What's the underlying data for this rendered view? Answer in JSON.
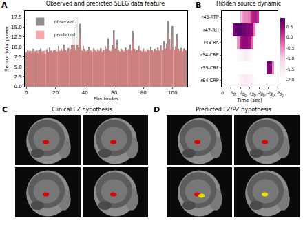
{
  "chart_data": [
    {
      "type": "bar",
      "title": "Observed and predicted SEEG data feature",
      "x_label": "Electrodes",
      "y_label": "Sensor total power",
      "x": [
        0,
        1,
        2,
        3,
        4,
        5,
        6,
        7,
        8,
        9,
        10,
        11,
        12,
        13,
        14,
        15,
        16,
        17,
        18,
        19,
        20,
        21,
        22,
        23,
        24,
        25,
        26,
        27,
        28,
        29,
        30,
        31,
        32,
        33,
        34,
        35,
        36,
        37,
        38,
        39,
        40,
        41,
        42,
        43,
        44,
        45,
        46,
        47,
        48,
        49,
        50,
        51,
        52,
        53,
        54,
        55,
        56,
        57,
        58,
        59,
        60,
        61,
        62,
        63,
        64,
        65,
        66,
        67,
        68,
        69,
        70,
        71,
        72,
        73,
        74,
        75,
        76,
        77,
        78,
        79,
        80,
        81,
        82,
        83,
        84,
        85,
        86,
        87,
        88,
        89,
        90,
        91,
        92,
        93,
        94,
        95,
        96,
        97,
        98,
        99,
        100,
        101,
        102,
        103,
        104,
        105,
        106,
        107,
        108,
        109
      ],
      "series": [
        {
          "name": "observed",
          "color": "#8c8c8c",
          "values": [
            8.5,
            9.2,
            8.8,
            9.0,
            8.3,
            9.5,
            8.9,
            9.1,
            8.4,
            9.3,
            9.6,
            8.7,
            9.0,
            8.2,
            9.4,
            8.6,
            9.8,
            9.1,
            8.5,
            9.0,
            9.3,
            8.8,
            10.2,
            8.9,
            9.5,
            9.0,
            10.8,
            9.2,
            8.6,
            9.7,
            9.4,
            10.5,
            13.5,
            15.0,
            9.2,
            17.5,
            9.8,
            15.8,
            9.0,
            10.2,
            9.5,
            8.9,
            9.3,
            10.0,
            9.1,
            8.7,
            9.6,
            9.2,
            8.8,
            9.4,
            9.0,
            9.7,
            8.6,
            9.3,
            10.1,
            9.5,
            12.2,
            9.1,
            8.9,
            10.5,
            14.2,
            9.6,
            11.8,
            9.3,
            8.8,
            9.5,
            9.1,
            8.7,
            9.8,
            9.2,
            9.4,
            10.6,
            9.0,
            14.0,
            9.5,
            8.9,
            9.3,
            10.2,
            9.1,
            8.8,
            9.6,
            9.0,
            8.7,
            9.4,
            9.2,
            10.0,
            9.3,
            8.6,
            9.5,
            9.1,
            9.8,
            9.0,
            10.4,
            9.2,
            11.5,
            9.6,
            10.8,
            16.5,
            12.0,
            9.4,
            15.2,
            9.3,
            10.1,
            13.2,
            9.5,
            9.0,
            9.7,
            8.8,
            9.6,
            9.2
          ]
        },
        {
          "name": "predicted",
          "color": "#f07a7a",
          "values": [
            8.8,
            9.0,
            9.1,
            8.7,
            8.9,
            9.2,
            9.0,
            8.8,
            9.1,
            9.0,
            9.2,
            9.0,
            8.9,
            9.1,
            9.0,
            8.8,
            9.3,
            9.0,
            8.9,
            9.2,
            9.1,
            9.0,
            9.6,
            9.1,
            9.3,
            9.0,
            10.0,
            9.2,
            9.0,
            9.4,
            9.3,
            9.8,
            11.0,
            12.0,
            9.4,
            13.5,
            9.6,
            12.5,
            9.2,
            9.8,
            9.3,
            9.1,
            9.2,
            9.6,
            9.1,
            9.0,
            9.3,
            9.2,
            9.0,
            9.2,
            9.1,
            9.4,
            9.0,
            9.2,
            9.7,
            9.3,
            10.5,
            9.1,
            9.0,
            9.8,
            12.0,
            9.4,
            10.5,
            9.2,
            9.0,
            9.3,
            9.1,
            9.0,
            9.5,
            9.2,
            9.3,
            9.9,
            9.1,
            11.5,
            9.3,
            9.0,
            9.2,
            9.8,
            9.1,
            9.0,
            9.3,
            9.1,
            9.0,
            9.2,
            9.1,
            9.6,
            9.2,
            9.0,
            9.3,
            9.1,
            9.5,
            9.1,
            9.8,
            9.2,
            10.3,
            9.4,
            10.0,
            13.8,
            10.5,
            9.3,
            12.8,
            9.2,
            9.7,
            11.5,
            9.3,
            9.1,
            9.4,
            9.0,
            9.3,
            9.2
          ]
        }
      ],
      "xlim": [
        -1,
        110
      ],
      "xticks": [
        0,
        20,
        40,
        60,
        80,
        100
      ],
      "ylim": [
        0,
        19
      ],
      "yticks": [
        {
          "value": 0,
          "label": "0.0"
        },
        2.5,
        {
          "value": 5,
          "label": "5.0"
        },
        7.5,
        {
          "value": 10,
          "label": "10.0"
        },
        12.5,
        {
          "value": 15,
          "label": "15.0"
        },
        17.5
      ],
      "legend": "upper left",
      "grid": false
    },
    {
      "type": "heatmap",
      "title": "Hidden source dynamic",
      "x_label": "Time (sec)",
      "categories": [
        "r43-RTP",
        "r47-RH",
        "r48-RA",
        "r54-CRE",
        "r55-CRF",
        "r64-CRP"
      ],
      "x": [
        5,
        15,
        25,
        35,
        45,
        55,
        65,
        75,
        85,
        95,
        105,
        115,
        125,
        135,
        145,
        155,
        165,
        175,
        185,
        195,
        205,
        215,
        225,
        235,
        245,
        255,
        265,
        275,
        285,
        295
      ],
      "z": [
        [
          -2,
          -2,
          -2,
          -2,
          -2,
          -2,
          -2,
          -2,
          -2,
          -2,
          -0.8,
          -0.6,
          -0.5,
          -0.5,
          -0.4,
          -0.3,
          0.2,
          0.3,
          0.3,
          0.1,
          -1.9,
          -2,
          -2,
          -2,
          -2,
          -2,
          -2,
          -2,
          -2,
          -2
        ],
        [
          -2,
          -2,
          -2,
          -2,
          -2,
          -2,
          0.6,
          0.8,
          0.8,
          0.8,
          0.8,
          0.7,
          0.7,
          0.6,
          0.6,
          0.5,
          0.5,
          -0.4,
          -1.8,
          -2,
          -2,
          -2,
          -2,
          -2,
          -2,
          -2,
          -2,
          -2,
          -2,
          -2
        ],
        [
          -2,
          -2,
          -2,
          -2,
          -2,
          -2,
          -2,
          -2,
          -0.6,
          -0.5,
          0.4,
          0.5,
          0.5,
          0.5,
          0.4,
          0.4,
          -0.2,
          -1.8,
          -2,
          -2,
          -2,
          -2,
          -2,
          -2,
          -2,
          -2,
          -2,
          -2,
          -2,
          -2
        ],
        [
          -2,
          -2,
          -2,
          -2,
          -2,
          -2,
          -2,
          -2,
          -1.9,
          -1.8,
          -1.7,
          -1.7,
          -1.6,
          -1.6,
          -1.7,
          -1.8,
          -1.9,
          -2,
          -2,
          -2,
          -2,
          -2,
          -2,
          -2,
          -2,
          -2,
          -2,
          -2,
          -2,
          -2
        ],
        [
          -2,
          -2,
          -2,
          -2,
          -2,
          -2,
          -2,
          -2,
          -2,
          -2,
          -2,
          -2,
          -2,
          -2,
          -2,
          -2,
          -2,
          -2,
          -2,
          -2,
          -2,
          -2,
          -2,
          -1.9,
          0.6,
          0.7,
          0.6,
          -0.5,
          -2,
          -2
        ],
        [
          -2,
          -2,
          -2,
          -2,
          -2,
          -2,
          -2,
          -2,
          -2,
          -1.8,
          -1.6,
          -1.6,
          -1.5,
          -1.5,
          -1.6,
          -1.6,
          -1.7,
          -1.9,
          -2,
          -2,
          -2,
          -2,
          -2,
          -2,
          -2,
          -2,
          -2,
          -2,
          -2,
          -2
        ]
      ],
      "xlim": [
        0,
        300
      ],
      "xticks": [
        0,
        50,
        100,
        150,
        200,
        250,
        300
      ],
      "zlim": [
        -2,
        0.9
      ],
      "zticks": [
        {
          "value": -2,
          "label": "-2.0"
        },
        -1.5,
        {
          "value": -1,
          "label": "-1.0"
        },
        -0.5,
        {
          "value": 0,
          "label": "0.0"
        },
        0.5
      ]
    }
  ],
  "panel_letters": [
    "A",
    "B"
  ],
  "images": [
    {
      "letter": "C",
      "title": "Clinical EZ hypothesis",
      "markers": [
        [
          "#e00000"
        ],
        [
          "#e00000"
        ],
        [
          "#e00000"
        ],
        [
          "#e00000"
        ]
      ]
    },
    {
      "letter": "D",
      "title": "Predicted EZ/PZ hypothesis",
      "markers": [
        [
          "#e00000"
        ],
        [
          "#e00000"
        ],
        [
          "#e00000",
          "#f0e000"
        ],
        [
          "#f0e000"
        ]
      ]
    }
  ]
}
